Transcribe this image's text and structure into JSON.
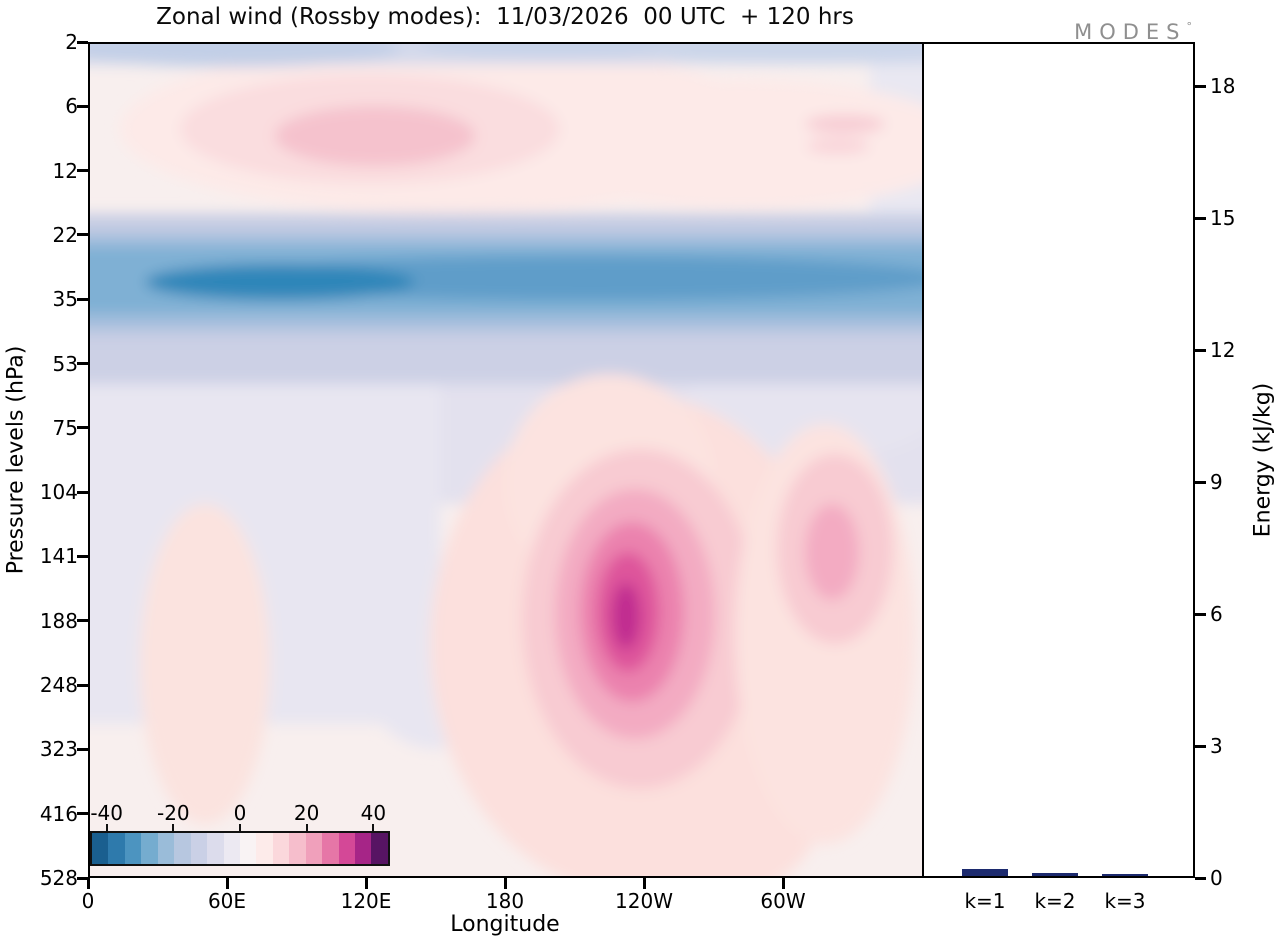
{
  "title": "Zonal wind (Rossby modes):  11/03/2026  00 UTC  + 120 hrs",
  "logo": {
    "text": "MODES",
    "mark": "°"
  },
  "axes": {
    "pressure": {
      "label": "Pressure levels (hPa)",
      "ticks": [
        "2",
        "6",
        "12",
        "22",
        "35",
        "53",
        "75",
        "104",
        "141",
        "188",
        "248",
        "323",
        "416",
        "528"
      ]
    },
    "longitude": {
      "label": "Longitude",
      "ticks": [
        "0",
        "60E",
        "120E",
        "180",
        "120W",
        "60W"
      ]
    },
    "energy": {
      "label": "Energy (kJ/kg)",
      "ticks": [
        "0",
        "3",
        "6",
        "9",
        "12",
        "15",
        "18"
      ]
    }
  },
  "colorbar": {
    "tick_labels": [
      "-40",
      "-20",
      "0",
      "20",
      "40"
    ],
    "tick_values": [
      -40,
      -20,
      0,
      20,
      40
    ],
    "range": [
      -45,
      45
    ],
    "colors": [
      "#1a5f8f",
      "#2e7aac",
      "#4c94c0",
      "#75accf",
      "#9abcd9",
      "#b7c7e0",
      "#cad0e6",
      "#dcdcec",
      "#ece9f2",
      "#f9f3f4",
      "#fdebea",
      "#fbd8dc",
      "#f6becc",
      "#f0a0bb",
      "#e676a7",
      "#d44897",
      "#a62587",
      "#571463"
    ]
  },
  "chart_data": [
    {
      "type": "heatmap",
      "title": "Zonal wind (Rossby modes): 11/03/2026 00 UTC + 120 hrs",
      "xlabel": "Longitude",
      "ylabel": "Pressure levels (hPa)",
      "x_deg_east": [
        0,
        30,
        60,
        90,
        120,
        150,
        180,
        210,
        240,
        270,
        300,
        330
      ],
      "y_pressure_hpa": [
        2,
        6,
        12,
        22,
        35,
        53,
        75,
        104,
        141,
        188,
        248,
        323,
        416,
        528
      ],
      "values_wind": [
        [
          -8,
          -8,
          -6,
          -5,
          -5,
          -4,
          -6,
          -6,
          -5,
          -5,
          -6,
          -8
        ],
        [
          2,
          6,
          10,
          14,
          12,
          8,
          5,
          3,
          2,
          2,
          4,
          3
        ],
        [
          3,
          5,
          8,
          8,
          7,
          5,
          4,
          3,
          2,
          2,
          3,
          3
        ],
        [
          -5,
          -6,
          -6,
          -6,
          -5,
          -5,
          -5,
          -4,
          -4,
          -4,
          -4,
          -5
        ],
        [
          -18,
          -22,
          -26,
          -26,
          -22,
          -18,
          -20,
          -18,
          -16,
          -15,
          -15,
          -16
        ],
        [
          -10,
          -12,
          -12,
          -11,
          -10,
          -9,
          -10,
          -9,
          -8,
          -8,
          -8,
          -9
        ],
        [
          -6,
          -7,
          -7,
          -6,
          -5,
          -4,
          -5,
          -4,
          -4,
          -4,
          -4,
          -5
        ],
        [
          -2,
          -3,
          -3,
          -2,
          0,
          1,
          1,
          2,
          3,
          2,
          3,
          1
        ],
        [
          2,
          1,
          1,
          2,
          3,
          3,
          4,
          10,
          16,
          8,
          12,
          5
        ],
        [
          3,
          2,
          3,
          4,
          3,
          3,
          5,
          14,
          34,
          10,
          6,
          4
        ],
        [
          3,
          2,
          4,
          5,
          3,
          2,
          4,
          10,
          22,
          8,
          5,
          4
        ],
        [
          4,
          3,
          4,
          5,
          4,
          3,
          3,
          6,
          12,
          6,
          5,
          4
        ],
        [
          4,
          3,
          4,
          4,
          4,
          3,
          3,
          4,
          8,
          6,
          5,
          4
        ],
        [
          4,
          4,
          4,
          4,
          4,
          3,
          3,
          4,
          6,
          5,
          5,
          4
        ]
      ],
      "colorbar_ticks": [
        -40,
        -20,
        0,
        20,
        40
      ],
      "grid": false,
      "legend_position": "none"
    },
    {
      "type": "bar",
      "categories": [
        "k=1",
        "k=2",
        "k=3"
      ],
      "values": [
        0.16,
        0.07,
        0.04
      ],
      "ylabel": "Energy (kJ/kg)",
      "ylim": [
        0,
        19
      ],
      "yticks": [
        0,
        3,
        6,
        9,
        12,
        15,
        18
      ],
      "bar_color": "#1c2a6e"
    }
  ]
}
